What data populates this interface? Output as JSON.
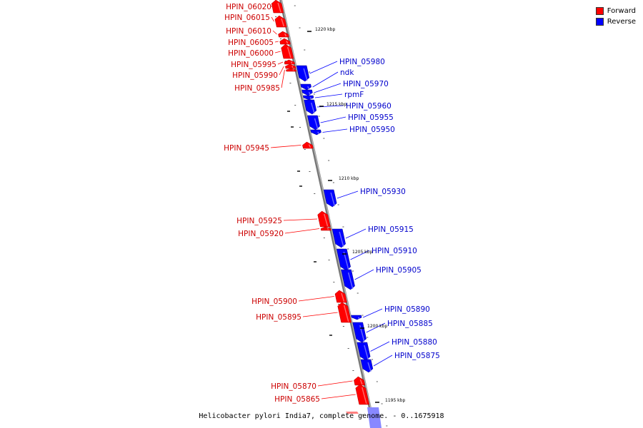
{
  "legend": {
    "forward_label": "Forward",
    "reverse_label": "Reverse",
    "forward_color": "#ff0000",
    "reverse_color": "#0000ff"
  },
  "caption": "Helicobacter pylori India7, complete genome. - 0..1675918",
  "scale_labels": [
    "1220 kbp",
    "1215 kbp",
    "1210 kbp",
    "1205 kbp",
    "1200 kbp",
    "1195 kbp"
  ],
  "genes": [
    {
      "label": "HPIN_06020",
      "strand": "forward"
    },
    {
      "label": "HPIN_06015",
      "strand": "forward"
    },
    {
      "label": "HPIN_06010",
      "strand": "forward"
    },
    {
      "label": "HPIN_06005",
      "strand": "forward"
    },
    {
      "label": "HPIN_06000",
      "strand": "forward"
    },
    {
      "label": "HPIN_05995",
      "strand": "forward"
    },
    {
      "label": "HPIN_05990",
      "strand": "forward"
    },
    {
      "label": "HPIN_05985",
      "strand": "forward"
    },
    {
      "label": "HPIN_05980",
      "strand": "reverse"
    },
    {
      "label": "ndk",
      "strand": "reverse"
    },
    {
      "label": "HPIN_05970",
      "strand": "reverse"
    },
    {
      "label": "rpmF",
      "strand": "reverse"
    },
    {
      "label": "HPIN_05960",
      "strand": "reverse"
    },
    {
      "label": "HPIN_05955",
      "strand": "reverse"
    },
    {
      "label": "HPIN_05950",
      "strand": "reverse"
    },
    {
      "label": "HPIN_05945",
      "strand": "forward"
    },
    {
      "label": "HPIN_05930",
      "strand": "reverse"
    },
    {
      "label": "HPIN_05925",
      "strand": "forward"
    },
    {
      "label": "HPIN_05920",
      "strand": "forward"
    },
    {
      "label": "HPIN_05915",
      "strand": "reverse"
    },
    {
      "label": "HPIN_05910",
      "strand": "reverse"
    },
    {
      "label": "HPIN_05905",
      "strand": "reverse"
    },
    {
      "label": "HPIN_05900",
      "strand": "forward"
    },
    {
      "label": "HPIN_05895",
      "strand": "forward"
    },
    {
      "label": "HPIN_05890",
      "strand": "reverse"
    },
    {
      "label": "HPIN_05885",
      "strand": "reverse"
    },
    {
      "label": "HPIN_05880",
      "strand": "reverse"
    },
    {
      "label": "HPIN_05875",
      "strand": "reverse"
    },
    {
      "label": "HPIN_05870",
      "strand": "forward"
    },
    {
      "label": "HPIN_05865",
      "strand": "forward"
    }
  ]
}
